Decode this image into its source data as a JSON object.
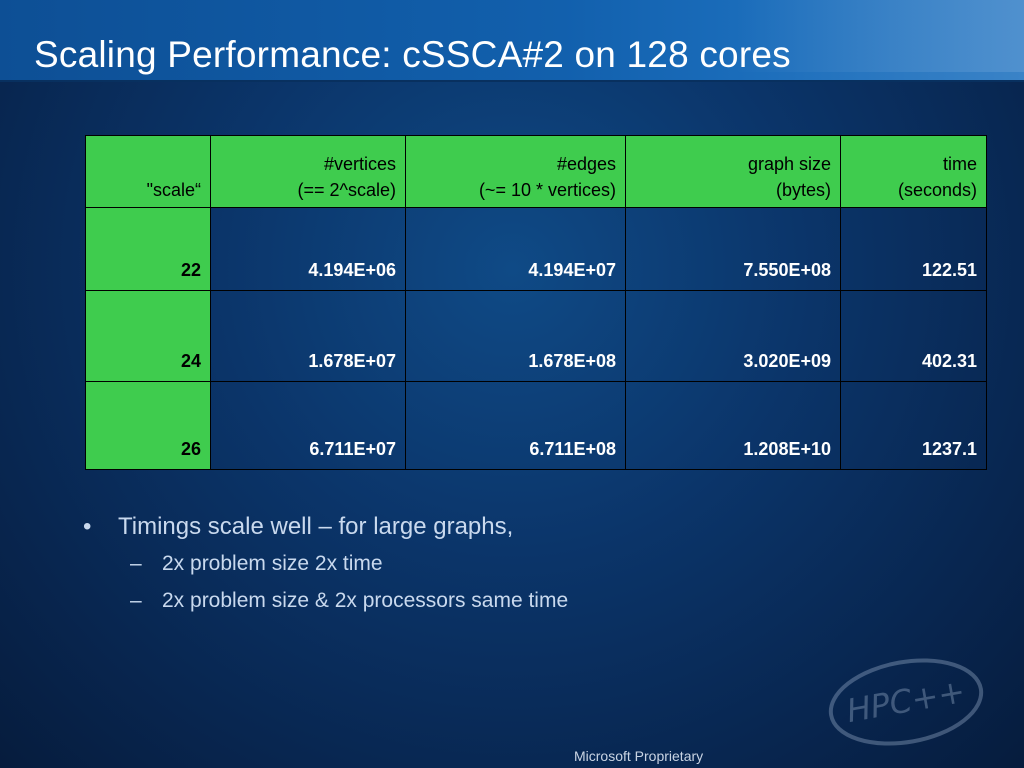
{
  "slide": {
    "title": "Scaling Performance: cSSCA#2 on 128 cores",
    "footer": "Microsoft Proprietary",
    "logo_text": "HPC++"
  },
  "table": {
    "headers": [
      {
        "line1": "",
        "line2": "\"scale“"
      },
      {
        "line1": "#vertices",
        "line2": "(== 2^scale)"
      },
      {
        "line1": "#edges",
        "line2": "(~= 10 * vertices)"
      },
      {
        "line1": "graph size",
        "line2": "(bytes)"
      },
      {
        "line1": "time",
        "line2": "(seconds)"
      }
    ],
    "rows": [
      [
        "22",
        "4.194E+06",
        "4.194E+07",
        "7.550E+08",
        "122.51"
      ],
      [
        "24",
        "1.678E+07",
        "1.678E+08",
        "3.020E+09",
        "402.31"
      ],
      [
        "26",
        "6.711E+07",
        "6.711E+08",
        "1.208E+10",
        "1237.1"
      ]
    ]
  },
  "bullets": {
    "main": "Timings scale well – for large graphs,",
    "sub": [
      "2x problem size  2x time",
      "2x problem size & 2x processors  same time"
    ],
    "bullet_glyph": "•",
    "dash_glyph": "–"
  }
}
